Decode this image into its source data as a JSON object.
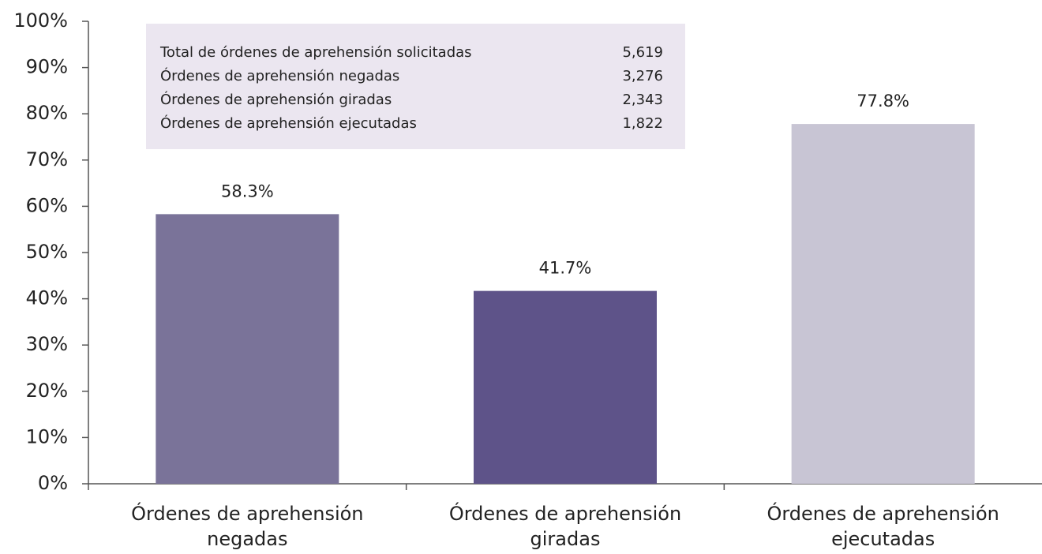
{
  "chart_data": {
    "type": "bar",
    "categories": [
      "Órdenes de aprehensión negadas",
      "Órdenes de aprehensión giradas",
      "Órdenes de aprehensión ejecutadas"
    ],
    "values": [
      58.3,
      41.7,
      77.8
    ],
    "value_labels": [
      "58.3%",
      "41.7%",
      "77.8%"
    ],
    "colors": [
      "#7a7399",
      "#5e5389",
      "#c8c5d4"
    ],
    "ylim": [
      0,
      100
    ],
    "yticks": [
      {
        "value": 0,
        "label": "0%"
      },
      {
        "value": 10,
        "label": "10%"
      },
      {
        "value": 20,
        "label": "20%"
      },
      {
        "value": 30,
        "label": "30%"
      },
      {
        "value": 40,
        "label": "40%"
      },
      {
        "value": 50,
        "label": "50%"
      },
      {
        "value": 60,
        "label": "60%"
      },
      {
        "value": 70,
        "label": "70%"
      },
      {
        "value": 80,
        "label": "80%"
      },
      {
        "value": 90,
        "label": "90%"
      },
      {
        "value": 100,
        "label": "100%"
      }
    ],
    "grid": false,
    "inset": {
      "rows": [
        {
          "label": "Total de órdenes de aprehensión solicitadas",
          "value": "5,619"
        },
        {
          "label": "Órdenes de aprehensión negadas",
          "value": "3,276"
        },
        {
          "label": "Órdenes de aprehensión giradas",
          "value": "2,343"
        },
        {
          "label": "Órdenes de aprehensión ejecutadas",
          "value": "1,822"
        }
      ]
    }
  }
}
